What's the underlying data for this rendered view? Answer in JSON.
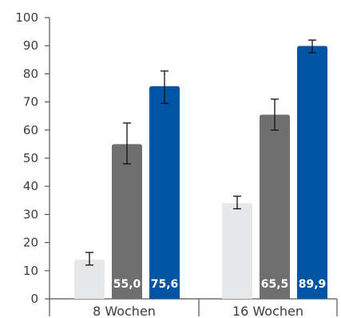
{
  "chart_data": {
    "type": "bar",
    "categories": [
      "8 Wochen",
      "16 Wochen"
    ],
    "ylim": [
      0,
      100
    ],
    "yticks": [
      "0",
      "10",
      "20",
      "30",
      "40",
      "50",
      "60",
      "70",
      "80",
      "90",
      "100"
    ],
    "grid": false,
    "legend": "none",
    "series": [
      {
        "color": "#e6e7e8",
        "values": [
          14.0,
          34.0
        ],
        "error_low": [
          12.0,
          32.0
        ],
        "error_high": [
          16.5,
          36.5
        ],
        "labels": [
          "",
          ""
        ]
      },
      {
        "color": "#6f6f6f",
        "values": [
          55.0,
          65.5
        ],
        "error_low": [
          48.0,
          60.0
        ],
        "error_high": [
          62.5,
          71.0
        ],
        "labels": [
          "55,0",
          "65,5"
        ]
      },
      {
        "color": "#0054a4",
        "values": [
          75.6,
          89.9
        ],
        "error_low": [
          69.5,
          87.5
        ],
        "error_high": [
          81.0,
          92.0
        ],
        "labels": [
          "75,6",
          "89,9"
        ]
      }
    ]
  }
}
